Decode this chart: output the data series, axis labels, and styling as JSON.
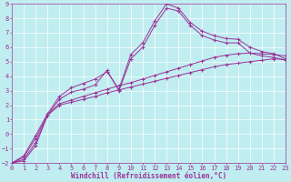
{
  "bg_color": "#c0edf0",
  "line_color": "#993399",
  "grid_color": "#ffffff",
  "xlabel": "Windchill (Refroidissement éolien,°C)",
  "xmin": 0,
  "xmax": 23,
  "ymin": -2,
  "ymax": 9,
  "curves": [
    [
      -2.0,
      -1.85,
      -0.8,
      1.3,
      2.0,
      2.2,
      2.4,
      2.6,
      2.85,
      3.05,
      3.25,
      3.45,
      3.65,
      3.85,
      4.05,
      4.25,
      4.45,
      4.65,
      4.8,
      4.9,
      5.0,
      5.1,
      5.2,
      5.15
    ],
    [
      -2.0,
      -1.75,
      -0.6,
      1.3,
      2.1,
      2.35,
      2.6,
      2.85,
      3.1,
      3.35,
      3.55,
      3.8,
      4.05,
      4.3,
      4.55,
      4.8,
      5.05,
      5.3,
      5.45,
      5.55,
      5.6,
      5.55,
      5.5,
      5.4
    ],
    [
      -2.0,
      -1.6,
      -0.3,
      1.3,
      2.4,
      2.9,
      3.1,
      3.4,
      4.4,
      3.0,
      5.2,
      6.0,
      7.5,
      8.7,
      8.5,
      7.5,
      6.8,
      6.5,
      6.3,
      6.3,
      5.6,
      5.4,
      5.3,
      5.1
    ],
    [
      -2.0,
      -1.5,
      -0.1,
      1.4,
      2.6,
      3.2,
      3.5,
      3.8,
      4.3,
      3.1,
      5.5,
      6.3,
      7.8,
      9.0,
      8.7,
      7.7,
      7.1,
      6.8,
      6.6,
      6.55,
      6.0,
      5.7,
      5.55,
      5.2
    ]
  ]
}
